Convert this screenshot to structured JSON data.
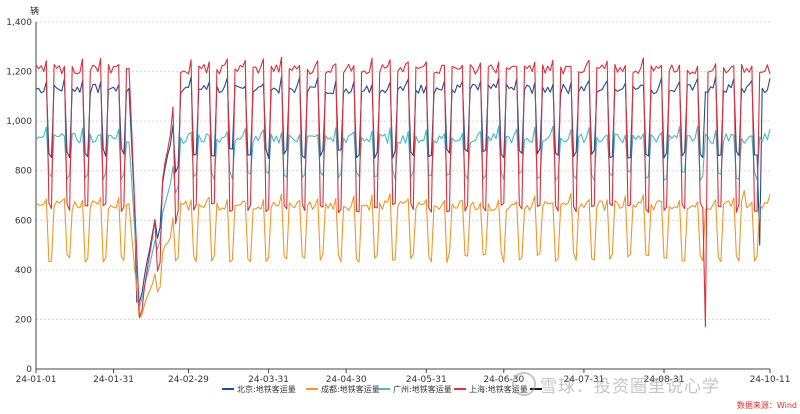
{
  "chart_data": {
    "type": "line",
    "unit_label": "辆",
    "ylim": [
      0,
      1400
    ],
    "y_ticks": [
      "0",
      "200",
      "400",
      "600",
      "800",
      "1,000",
      "1,200",
      "1,400"
    ],
    "x_range": [
      "2024-01-01",
      "2024-10-11"
    ],
    "x_tick_labels": [
      "24-01-01",
      "24-01-31",
      "24-02-29",
      "24-03-31",
      "24-04-30",
      "24-05-31",
      "24-06-30",
      "24-07-31",
      "24-08-31",
      "24-10-11"
    ],
    "grid": true,
    "legend_position": "bottom",
    "source": "数据来源：Wind",
    "colors": {
      "beijing": "#1f4e8c",
      "chengdu": "#f0962a",
      "guangzhou": "#4db8c4",
      "shanghai": "#d9313e",
      "fifth": "#1a1a2e"
    },
    "series": [
      {
        "key": "beijing",
        "name": "北京:地铁客运量",
        "color": "#1f4e8c",
        "weekday_level": 1130,
        "weekend_level": 870,
        "notes_values": {
          "2024-02-09": 270,
          "2024-10-07": 500
        }
      },
      {
        "key": "chengdu",
        "name": "成都:地铁客运量",
        "color": "#f0962a",
        "weekday_level": 660,
        "weekend_level": 450,
        "notes_values": {
          "2024-02-10": 205,
          "2024-10-01": 720
        }
      },
      {
        "key": "guangzhou",
        "name": "广州:地铁客运量",
        "color": "#4db8c4",
        "weekday_level": 930,
        "weekend_level": 780,
        "notes_values": {
          "2024-02-10": 250
        }
      },
      {
        "key": "shanghai",
        "name": "上海:地铁客运量",
        "color": "#d9313e",
        "weekday_level": 1210,
        "weekend_level": 650,
        "notes_values": {
          "2024-02-10": 210,
          "2024-09-16": 170,
          "2024-10-11": 1190
        }
      },
      {
        "key": "fifth",
        "name": "",
        "color": "#1a1a2e",
        "weekday_level": 0,
        "weekend_level": 0,
        "notes_values": {}
      }
    ]
  },
  "watermark": {
    "text": "雪球：投资圈里说心学"
  }
}
